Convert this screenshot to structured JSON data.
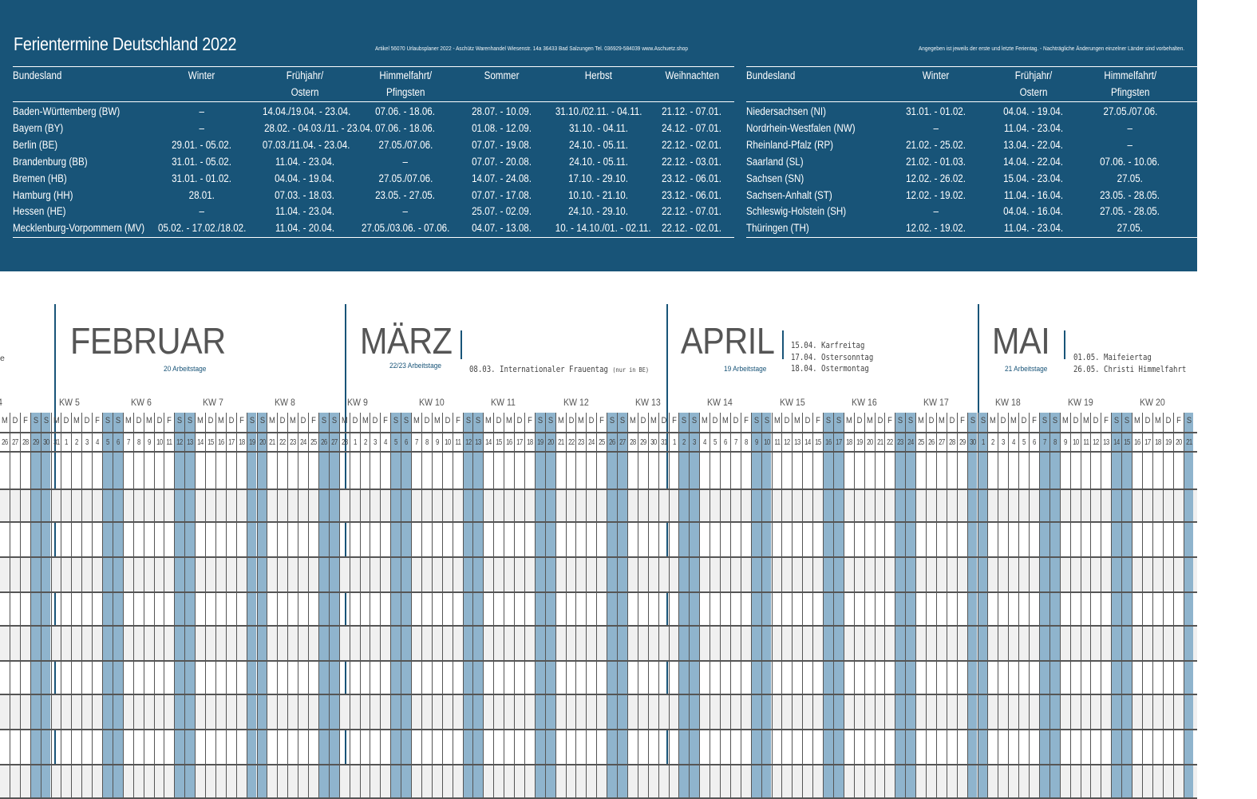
{
  "band": {
    "title": "Ferientermine Deutschland 2022",
    "imprint": "Artikel 56070 Urlaubsplaner 2022 - Aschütz Warenhandel  Wiesenstr. 14a  36433 Bad Salzungen  Tel. 036929-584039  www.Aschuetz.shop",
    "note": "Angegeben ist jeweils der erste und letzte Ferientag. - Nachträgliche Änderungen einzelner Länder sind vorbehalten.",
    "headers": [
      "Bundesland",
      "Winter",
      "Frühjahr/\nOstern",
      "Himmelfahrt/\nPfingsten",
      "Sommer",
      "Herbst",
      "Weihnachten"
    ],
    "left_rows": [
      [
        "Baden-Württemberg (BW)",
        "–",
        "14.04./19.04. - 23.04.",
        "07.06. - 18.06.",
        "28.07. - 10.09.",
        "31.10./02.11. - 04.11.",
        "21.12. - 07.01."
      ],
      [
        "Bayern (BY)",
        "–",
        "28.02. - 04.03./11. - 23.04.",
        "07.06. - 18.06.",
        "01.08. - 12.09.",
        "31.10. - 04.11.",
        "24.12. - 07.01."
      ],
      [
        "Berlin (BE)",
        "29.01. - 05.02.",
        "07.03./11.04. - 23.04.",
        "27.05./07.06.",
        "07.07. - 19.08.",
        "24.10. - 05.11.",
        "22.12. - 02.01."
      ],
      [
        "Brandenburg (BB)",
        "31.01. - 05.02.",
        "11.04. - 23.04.",
        "–",
        "07.07. - 20.08.",
        "24.10. - 05.11.",
        "22.12. - 03.01."
      ],
      [
        "Bremen (HB)",
        "31.01. - 01.02.",
        "04.04. - 19.04.",
        "27.05./07.06.",
        "14.07. - 24.08.",
        "17.10. - 29.10.",
        "23.12. - 06.01."
      ],
      [
        "Hamburg (HH)",
        "28.01.",
        "07.03. - 18.03.",
        "23.05. - 27.05.",
        "07.07. - 17.08.",
        "10.10. - 21.10.",
        "23.12. - 06.01."
      ],
      [
        "Hessen (HE)",
        "–",
        "11.04. - 23.04.",
        "–",
        "25.07. - 02.09.",
        "24.10. - 29.10.",
        "22.12. - 07.01."
      ],
      [
        "Mecklenburg-Vorpommern (MV)",
        "05.02. - 17.02./18.02.",
        "11.04. - 20.04.",
        "27.05./03.06. - 07.06.",
        "04.07. - 13.08.",
        "10. - 14.10./01. - 02.11.",
        "22.12. - 02.01."
      ]
    ],
    "right_rows": [
      [
        "Niedersachsen (NI)",
        "31.01. - 01.02.",
        "04.04. - 19.04.",
        "27.05./07.06."
      ],
      [
        "Nordrhein-Westfalen (NW)",
        "–",
        "11.04. - 23.04.",
        "–"
      ],
      [
        "Rheinland-Pfalz (RP)",
        "21.02. - 25.02.",
        "13.04. - 22.04.",
        "–"
      ],
      [
        "Saarland (SL)",
        "21.02. - 01.03.",
        "14.04. - 22.04.",
        "07.06. - 10.06."
      ],
      [
        "Sachsen (SN)",
        "12.02. - 26.02.",
        "15.04. - 23.04.",
        "27.05."
      ],
      [
        "Sachsen-Anhalt (ST)",
        "12.02. - 19.02.",
        "11.04. - 16.04.",
        "23.05. - 28.05."
      ],
      [
        "Schleswig-Holstein (SH)",
        "–",
        "04.04. - 16.04.",
        "27.05. - 28.05."
      ],
      [
        "Thüringen (TH)",
        "12.02. - 19.02.",
        "11.04. - 23.04.",
        "27.05."
      ]
    ]
  },
  "months": [
    {
      "name": "FEBRUAR",
      "workdays": "20 Arbeitstage",
      "holidays": []
    },
    {
      "name": "MÄRZ",
      "workdays": "22/23  Arbeitstage",
      "holidays": [
        "08.03. Internationaler Frauentag"
      ],
      "holiday_note": "(nur in BE)"
    },
    {
      "name": "APRIL",
      "workdays": "19 Arbeitstage",
      "holidays": [
        "15.04. Karfreitag",
        "17.04. Ostersonntag",
        "18.04. Ostermontag"
      ]
    },
    {
      "name": "MAI",
      "workdays": "21 Arbeitstage",
      "holidays": [
        "01.05. Maifeiertag",
        "26.05. Christi Himmelfahrt"
      ]
    }
  ],
  "left_edge_fragment": "e",
  "left_kw_fragment": "4",
  "weeks": [
    "KW 5",
    "KW 6",
    "KW 7",
    "KW 8",
    "KW 9",
    "KW 10",
    "KW 11",
    "KW 12",
    "KW 13",
    "KW 14",
    "KW 15",
    "KW 16",
    "KW 17",
    "KW 18",
    "KW 19",
    "KW 20"
  ],
  "calendar": {
    "start_weekday_jan26": "Mittwoch",
    "days": {
      "jan_tail": [
        26,
        27,
        28,
        29,
        30,
        31
      ],
      "feb": 28,
      "mar": 31,
      "apr": 30,
      "may_visible": 21
    },
    "weekday_letters": [
      "M",
      "D",
      "M",
      "D",
      "F",
      "S",
      "S"
    ],
    "bold_days": [
      "26.05."
    ],
    "weekend_color": "#8fb4cd",
    "row_count": 11
  },
  "colors": {
    "band": "#185478",
    "accent": "#185478",
    "grid": "#555555"
  }
}
